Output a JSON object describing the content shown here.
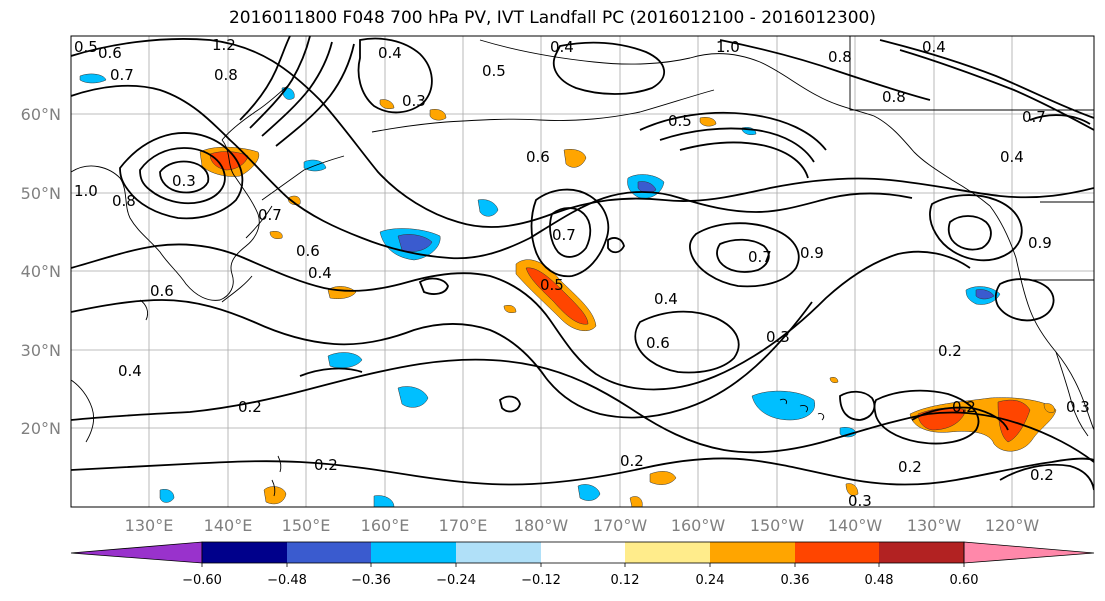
{
  "title": "2016011800 F048 700 hPa PV, IVT Landfall PC (2016012100 - 2016012300)",
  "map": {
    "lat_ticks": [
      "60°N",
      "50°N",
      "40°N",
      "30°N",
      "20°N"
    ],
    "lon_ticks": [
      "130°E",
      "140°E",
      "150°E",
      "160°E",
      "170°E",
      "180°W",
      "170°W",
      "160°W",
      "150°W",
      "140°W",
      "130°W",
      "120°W"
    ],
    "contour_labels": [
      "1.2",
      "0.6",
      "0.7",
      "0.5",
      "0.8",
      "0.4",
      "0.3",
      "0.5",
      "0.4",
      "1.0",
      "0.8",
      "0.4",
      "0.8",
      "0.7",
      "0.4",
      "0.6",
      "0.5",
      "0.7",
      "0.4",
      "0.6",
      "0.7",
      "0.5",
      "0.3",
      "0.6",
      "0.4",
      "0.3",
      "0.2",
      "0.2",
      "0.2",
      "0.2",
      "0.2",
      "0.2",
      "0.3",
      "0.2",
      "0.3",
      "0.8",
      "0.6",
      "0.9",
      "0.4",
      "1.0",
      "0.7",
      "0.9"
    ]
  },
  "colorbar": {
    "colors": [
      "#9932cc",
      "#00008b",
      "#3a5bcf",
      "#00bfff",
      "#b0e0f8",
      "#ffffff",
      "#ffec8b",
      "#ffa500",
      "#ff4500",
      "#b22222",
      "#ff88aa"
    ],
    "labels": [
      "−0.60",
      "−0.48",
      "−0.36",
      "−0.24",
      "−0.12",
      "0.12",
      "0.24",
      "0.36",
      "0.48",
      "0.60"
    ]
  }
}
